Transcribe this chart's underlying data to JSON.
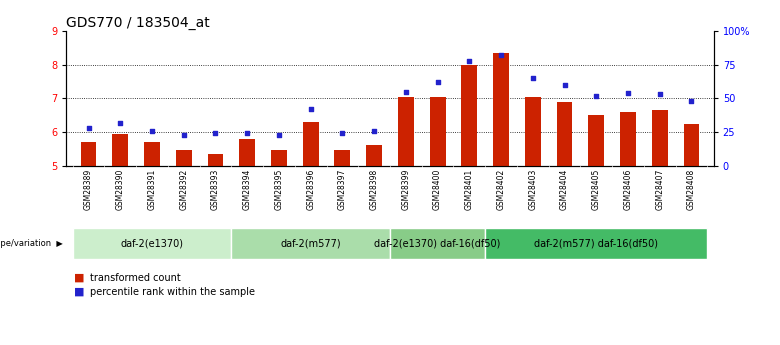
{
  "title": "GDS770 / 183504_at",
  "samples": [
    "GSM28389",
    "GSM28390",
    "GSM28391",
    "GSM28392",
    "GSM28393",
    "GSM28394",
    "GSM28395",
    "GSM28396",
    "GSM28397",
    "GSM28398",
    "GSM28399",
    "GSM28400",
    "GSM28401",
    "GSM28402",
    "GSM28403",
    "GSM28404",
    "GSM28405",
    "GSM28406",
    "GSM28407",
    "GSM28408"
  ],
  "bar_values": [
    5.7,
    5.95,
    5.7,
    5.45,
    5.35,
    5.8,
    5.45,
    6.3,
    5.45,
    5.6,
    7.05,
    7.05,
    8.0,
    8.35,
    7.05,
    6.9,
    6.5,
    6.6,
    6.65,
    6.25
  ],
  "dot_values": [
    28,
    32,
    26,
    23,
    24,
    24,
    23,
    42,
    24,
    26,
    55,
    62,
    78,
    82,
    65,
    60,
    52,
    54,
    53,
    48
  ],
  "ylim_left": [
    5,
    9
  ],
  "ylim_right": [
    0,
    100
  ],
  "yticks_left": [
    5,
    6,
    7,
    8,
    9
  ],
  "yticks_right": [
    0,
    25,
    50,
    75,
    100
  ],
  "ytick_right_labels": [
    "0",
    "25",
    "50",
    "75",
    "100%"
  ],
  "bar_color": "#cc2200",
  "dot_color": "#2222cc",
  "bar_width": 0.5,
  "groups": [
    {
      "label": "daf-2(e1370)",
      "start": 0,
      "end": 5,
      "color": "#cceecc"
    },
    {
      "label": "daf-2(m577)",
      "start": 5,
      "end": 10,
      "color": "#aaddaa"
    },
    {
      "label": "daf-2(e1370) daf-16(df50)",
      "start": 10,
      "end": 13,
      "color": "#88cc88"
    },
    {
      "label": "daf-2(m577) daf-16(df50)",
      "start": 13,
      "end": 20,
      "color": "#44bb66"
    }
  ],
  "genotype_label": "genotype/variation",
  "legend_bar_label": "transformed count",
  "legend_dot_label": "percentile rank within the sample",
  "title_fontsize": 10,
  "tick_fontsize": 7,
  "group_fontsize": 7,
  "legend_fontsize": 7,
  "grey_bg": "#cccccc",
  "white_bg": "#ffffff"
}
